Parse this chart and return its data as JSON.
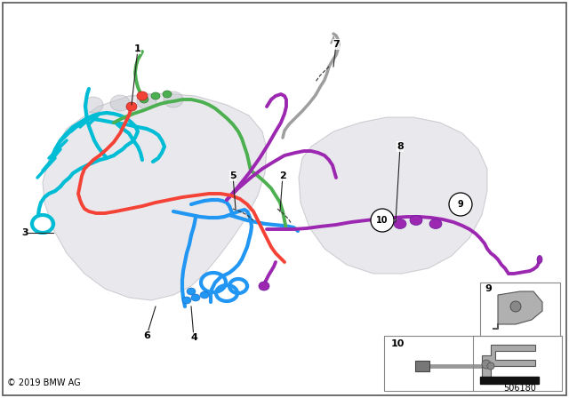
{
  "background_color": "#ffffff",
  "copyright_text": "© 2019 BMW AG",
  "part_number": "506180",
  "fig_width": 6.4,
  "fig_height": 4.48,
  "dpi": 100,
  "wire_colors": {
    "cyan": "#00bcd4",
    "blue": "#2196f3",
    "green": "#4caf50",
    "red": "#f44336",
    "purple": "#9c27b0",
    "gray": "#9e9e9e",
    "dark_gray": "#616161"
  },
  "engine_body_color": "#d0d0d8",
  "engine_edge_color": "#a0a0aa"
}
